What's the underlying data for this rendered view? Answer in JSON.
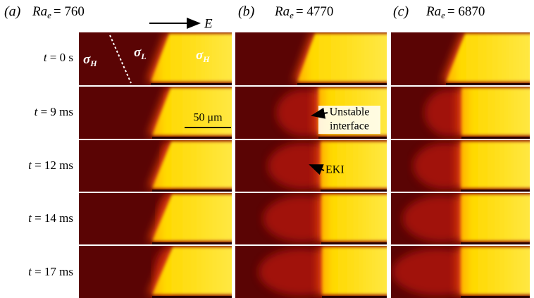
{
  "panels": [
    {
      "label": "(a)",
      "ra": {
        "symbol": "Ra",
        "sub": "e",
        "value": "= 760"
      }
    },
    {
      "label": "(b)",
      "ra": {
        "symbol": "Ra",
        "sub": "e",
        "value": "= 4770"
      }
    },
    {
      "label": "(c)",
      "ra": {
        "symbol": "Ra",
        "sub": "e",
        "value": "= 6870"
      }
    }
  ],
  "field": "E",
  "times": [
    {
      "var": "t",
      "rest": "= 0 s"
    },
    {
      "var": "t",
      "rest": "= 9 ms"
    },
    {
      "var": "t",
      "rest": "= 12 ms"
    },
    {
      "var": "t",
      "rest": "= 14 ms"
    },
    {
      "var": "t",
      "rest": "= 17 ms"
    }
  ],
  "conductivities": [
    {
      "symbol": "σ",
      "sub": "H"
    },
    {
      "symbol": "σ",
      "sub": "L"
    },
    {
      "symbol": "σ",
      "sub": "H"
    }
  ],
  "scale_bar": "50 μm",
  "annotations": {
    "unstable": [
      "Unstable",
      "interface"
    ],
    "eki": "EKI"
  }
}
